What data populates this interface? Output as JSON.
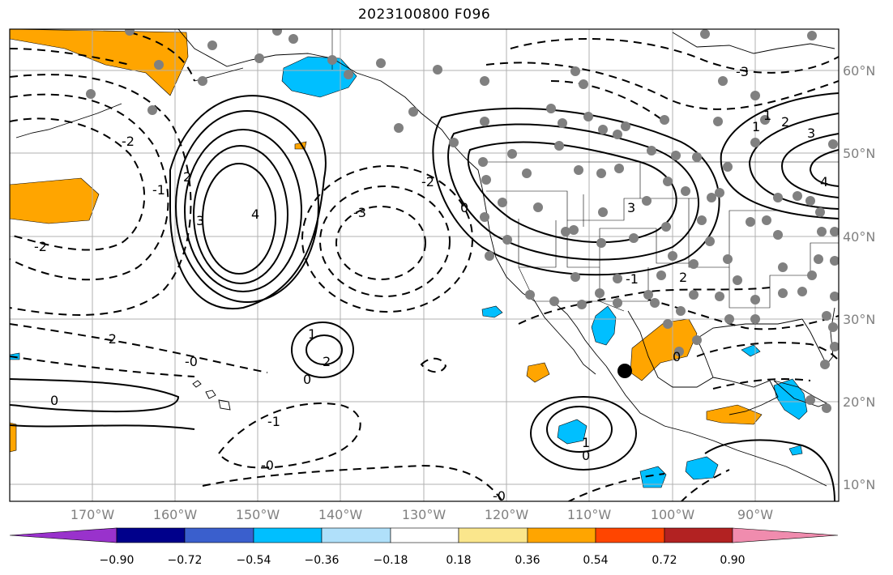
{
  "title": "2023100800 F096",
  "map": {
    "lon_ticks": [
      "170°W",
      "160°W",
      "150°W",
      "140°W",
      "130°W",
      "120°W",
      "110°W",
      "100°W",
      "90°W"
    ],
    "lat_ticks": [
      "60°N",
      "50°N",
      "40°N",
      "30°N",
      "20°N",
      "10°N"
    ],
    "extent": {
      "lon_min": -180,
      "lon_max": -80,
      "lat_min": 8,
      "lat_max": 65
    },
    "gridlines": true,
    "marker": {
      "lon": -105.7,
      "lat": 23.8,
      "label": ""
    }
  },
  "contour_labels": [
    "-2",
    "-2",
    "-2",
    "-2",
    "-1",
    "-1",
    "-1",
    "-0",
    "-0",
    "-0",
    "0",
    "0",
    "0",
    "0",
    "0",
    "1",
    "1",
    "1",
    "1",
    "2",
    "2",
    "2",
    "2",
    "3",
    "3",
    "3",
    "-3",
    "-3",
    "4",
    "4"
  ],
  "colorbar": {
    "ticks": [
      "−0.90",
      "−0.72",
      "−0.54",
      "−0.36",
      "−0.18",
      "0.18",
      "0.36",
      "0.54",
      "0.72",
      "0.90"
    ],
    "colors": [
      "#9932cc",
      "#00008b",
      "#3a5fcd",
      "#00bfff",
      "#b0e0fa",
      "#ffffff",
      "#fae68c",
      "#ffa500",
      "#ff4500",
      "#b22222",
      "#f08cae"
    ]
  },
  "colors": {
    "negative_fill": "#00bfff",
    "positive_fill": "#ffa500",
    "station_dots": "#808080",
    "grid": "#b0b0b0"
  }
}
